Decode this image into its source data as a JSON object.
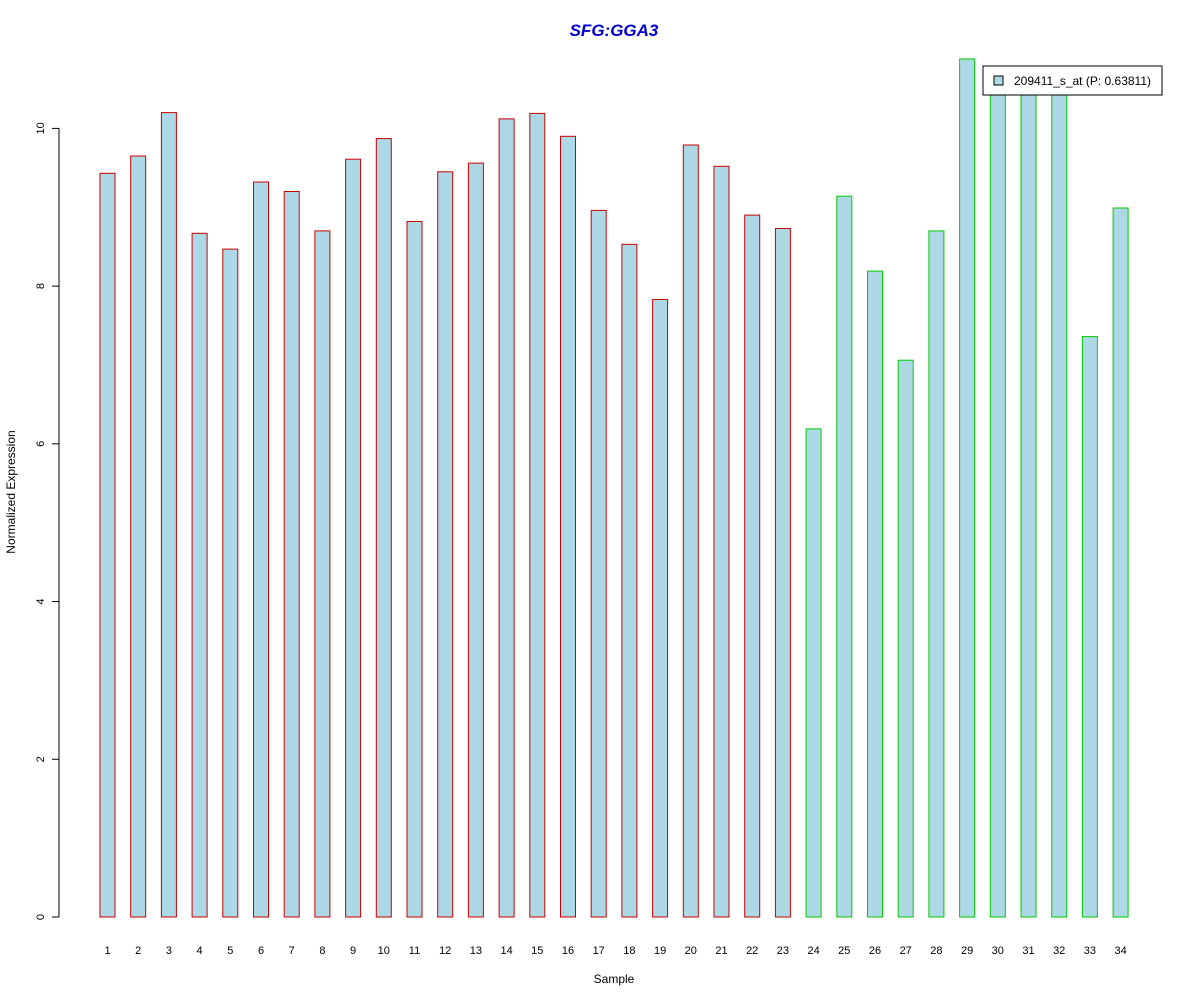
{
  "chart_data": {
    "type": "bar",
    "title": "SFG:GGA3",
    "xlabel": "Sample",
    "ylabel": "Normalized Expression",
    "categories": [
      "1",
      "2",
      "3",
      "4",
      "5",
      "6",
      "7",
      "8",
      "9",
      "10",
      "11",
      "12",
      "13",
      "14",
      "15",
      "16",
      "17",
      "18",
      "19",
      "20",
      "21",
      "22",
      "23",
      "24",
      "25",
      "26",
      "27",
      "28",
      "29",
      "30",
      "31",
      "32",
      "33",
      "34"
    ],
    "series": [
      {
        "name": "209411_s_at (P: 0.63811)",
        "values": [
          9.43,
          9.65,
          10.2,
          8.67,
          8.47,
          9.32,
          9.2,
          8.7,
          9.61,
          9.87,
          8.82,
          9.45,
          9.56,
          10.12,
          10.19,
          9.9,
          8.96,
          8.53,
          7.83,
          9.79,
          9.52,
          8.9,
          8.73,
          6.19,
          9.14,
          8.19,
          7.06,
          8.7,
          10.88,
          10.6,
          10.6,
          10.6,
          7.36,
          8.99
        ]
      }
    ],
    "group_colors": [
      "#cc0000",
      "#cc0000",
      "#cc0000",
      "#cc0000",
      "#cc0000",
      "#cc0000",
      "#cc0000",
      "#cc0000",
      "#cc0000",
      "#cc0000",
      "#cc0000",
      "#cc0000",
      "#cc0000",
      "#cc0000",
      "#cc0000",
      "#cc0000",
      "#cc0000",
      "#cc0000",
      "#cc0000",
      "#cc0000",
      "#cc0000",
      "#cc0000",
      "#cc0000",
      "#00cc00",
      "#00cc00",
      "#00cc00",
      "#00cc00",
      "#00cc00",
      "#00cc00",
      "#00cc00",
      "#00cc00",
      "#00cc00",
      "#00cc00",
      "#00cc00"
    ],
    "fill_color": "#add8e6",
    "title_color": "#0000cc",
    "yticks": [
      "0",
      "2",
      "4",
      "6",
      "8",
      "10"
    ],
    "ylim": [
      0,
      10.88
    ],
    "grid": false,
    "legend_position": "top-right"
  }
}
